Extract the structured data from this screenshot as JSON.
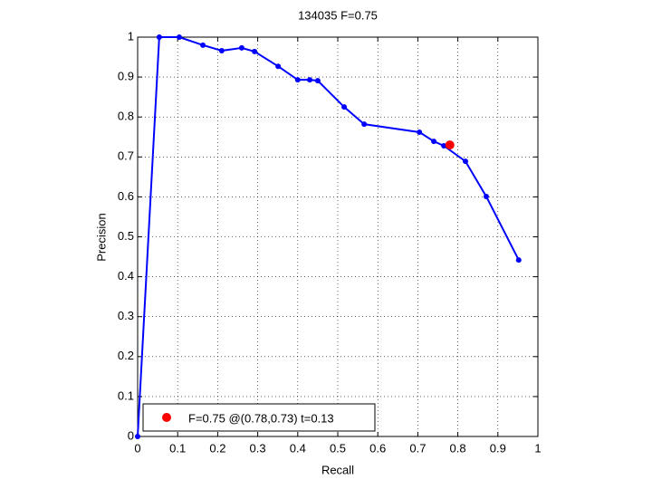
{
  "chart_data": {
    "type": "line",
    "title": "134035 F=0.75",
    "xlabel": "Recall",
    "ylabel": "Precision",
    "xlim": [
      0,
      1
    ],
    "ylim": [
      0,
      1
    ],
    "xticks": [
      0,
      0.1,
      0.2,
      0.3,
      0.4,
      0.5,
      0.6,
      0.7,
      0.8,
      0.9,
      1
    ],
    "yticks": [
      0,
      0.1,
      0.2,
      0.3,
      0.4,
      0.5,
      0.6,
      0.7,
      0.8,
      0.9,
      1
    ],
    "grid": true,
    "legend": "lower left",
    "series": [
      {
        "color": "#0000ff",
        "marker": true,
        "line": true,
        "x": [
          0,
          0.054,
          0.104,
          0.163,
          0.21,
          0.26,
          0.292,
          0.351,
          0.4,
          0.43,
          0.45,
          0.516,
          0.566,
          0.704,
          0.74,
          0.765,
          0.819,
          0.871,
          0.952
        ],
        "values": [
          0,
          1,
          1,
          0.98,
          0.966,
          0.973,
          0.964,
          0.927,
          0.893,
          0.893,
          0.891,
          0.825,
          0.782,
          0.762,
          0.739,
          0.728,
          0.689,
          0.601,
          0.442
        ]
      },
      {
        "name": "F=0.75 @(0.78,0.73) t=0.13",
        "color": "#ff0000",
        "marker": true,
        "line": false,
        "x": [
          0.78
        ],
        "values": [
          0.73
        ]
      }
    ]
  }
}
